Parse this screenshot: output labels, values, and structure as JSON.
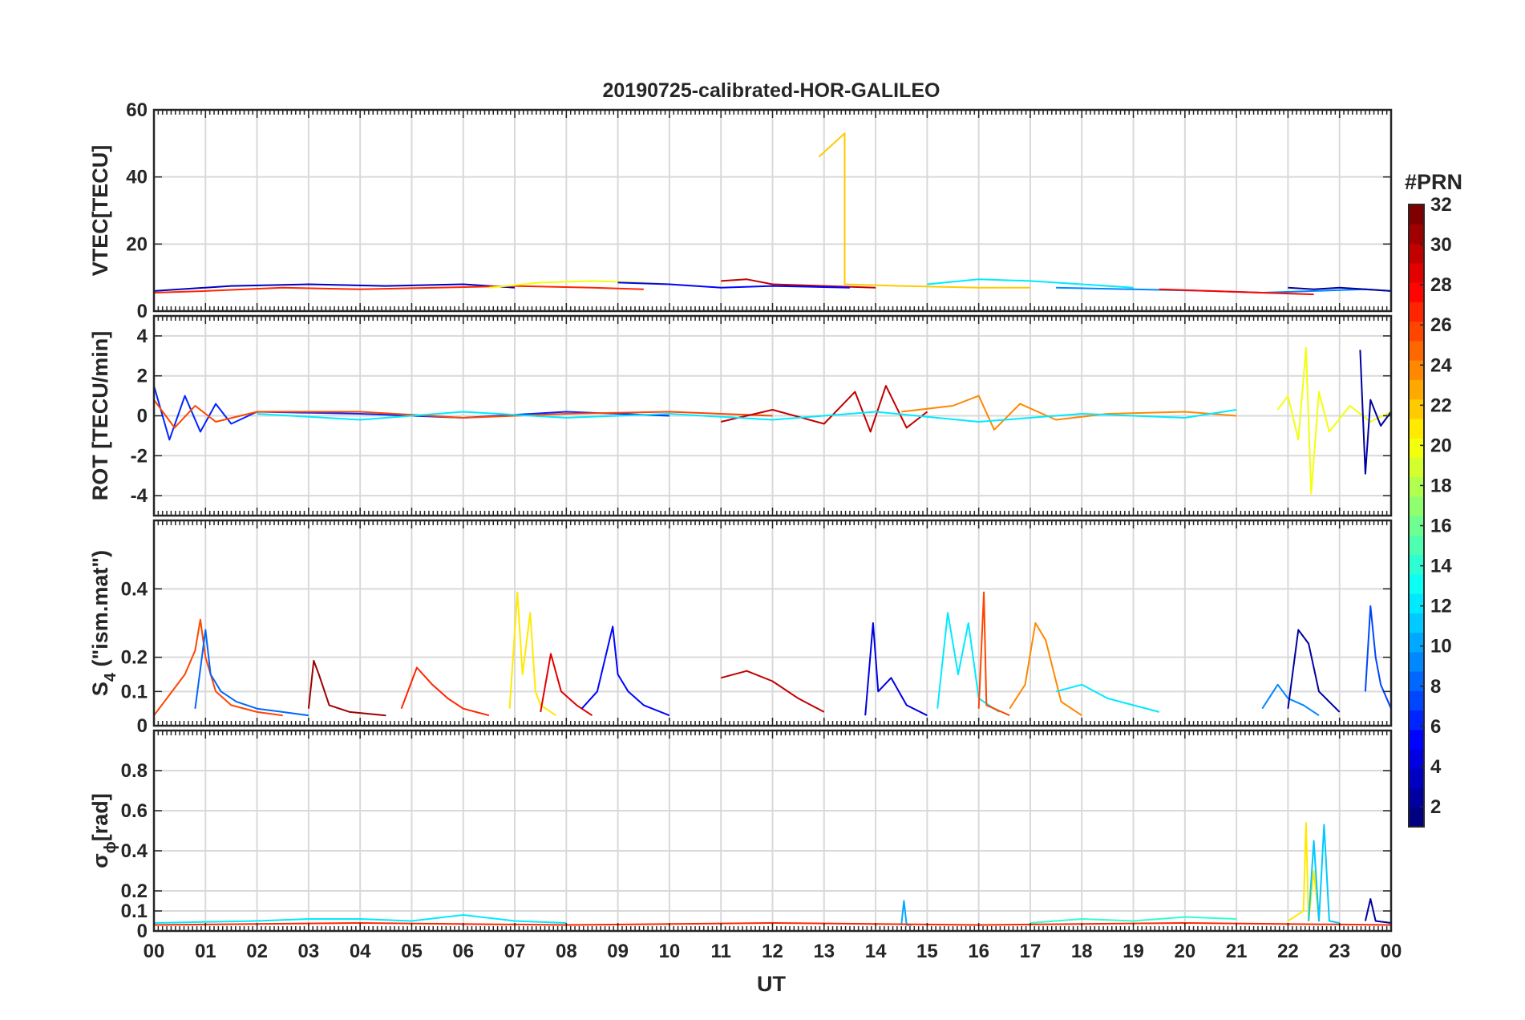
{
  "chart_data": {
    "type": "line",
    "title": "20190725-calibrated-HOR-GALILEO",
    "xlabel": "UT",
    "x_ticks": [
      "00",
      "01",
      "02",
      "03",
      "04",
      "05",
      "06",
      "07",
      "08",
      "09",
      "10",
      "11",
      "12",
      "13",
      "14",
      "15",
      "16",
      "17",
      "18",
      "19",
      "20",
      "21",
      "22",
      "23",
      "00"
    ],
    "xlim": [
      0,
      24
    ],
    "grid": true,
    "colorbar": {
      "title": "#PRN",
      "ticks": [
        2,
        4,
        6,
        8,
        10,
        12,
        14,
        16,
        18,
        20,
        22,
        24,
        26,
        28,
        30,
        32
      ],
      "range": [
        1,
        32
      ],
      "colormap": "jet"
    },
    "panels": [
      {
        "id": "vtec",
        "ylabel": "VTEC[TECU]",
        "ylim": [
          0,
          60
        ],
        "yticks": [
          0,
          20,
          40,
          60
        ],
        "series": [
          {
            "prn": 22,
            "x": [
              12.9,
              13.4,
              13.4,
              13.4,
              14.5,
              16.0,
              17.0
            ],
            "y": [
              46,
              53,
              52,
              8,
              7.5,
              7,
              7
            ]
          },
          {
            "prn": 3,
            "x": [
              0,
              1.5,
              3.0,
              4.5,
              6.0,
              7.0
            ],
            "y": [
              6,
              7.5,
              8,
              7.5,
              8,
              7
            ]
          },
          {
            "prn": 27,
            "x": [
              0,
              1.0,
              2.5,
              4.0,
              5.5,
              7.0,
              8.5,
              9.5
            ],
            "y": [
              5.5,
              6,
              7,
              6.5,
              7,
              7.5,
              7,
              6.5
            ]
          },
          {
            "prn": 20,
            "x": [
              6.5,
              7.5,
              8.5,
              9.5,
              10.5
            ],
            "y": [
              7,
              8.5,
              9,
              8.5,
              7.5
            ]
          },
          {
            "prn": 12,
            "x": [
              15.0,
              16.0,
              17.0,
              18.0,
              19.0
            ],
            "y": [
              8,
              9.5,
              9,
              8,
              7
            ]
          },
          {
            "prn": 30,
            "x": [
              11.0,
              11.5,
              12.0,
              13.0,
              14.0
            ],
            "y": [
              9,
              9.5,
              8,
              7.5,
              7
            ]
          },
          {
            "prn": 5,
            "x": [
              9.0,
              10.0,
              11.0,
              12.0,
              13.5
            ],
            "y": [
              8.5,
              8,
              7,
              7.5,
              7
            ]
          },
          {
            "prn": 9,
            "x": [
              17.5,
              19.0,
              20.5,
              21.5,
              22.5,
              23.5,
              24.0
            ],
            "y": [
              7,
              6.5,
              6,
              5.5,
              6,
              6.5,
              6
            ]
          },
          {
            "prn": 28,
            "x": [
              19.5,
              20.5,
              21.5,
              22.5
            ],
            "y": [
              6.5,
              6,
              5.5,
              5
            ]
          },
          {
            "prn": 2,
            "x": [
              22.0,
              22.5,
              23.0,
              23.5,
              24.0
            ],
            "y": [
              7,
              6.5,
              7,
              6.5,
              6
            ]
          }
        ]
      },
      {
        "id": "rot",
        "ylabel": "ROT [TECU/min]",
        "ylim": [
          -5,
          5
        ],
        "yticks": [
          -4,
          -2,
          0,
          2,
          4
        ],
        "series": [
          {
            "prn": 6,
            "x": [
              0,
              0.3,
              0.6,
              0.9,
              1.2,
              1.5,
              2.0,
              4.0,
              6.0,
              8.0,
              10.0
            ],
            "y": [
              1.5,
              -1.2,
              1.0,
              -0.8,
              0.6,
              -0.4,
              0.2,
              0.1,
              -0.1,
              0.2,
              0
            ]
          },
          {
            "prn": 26,
            "x": [
              0,
              0.4,
              0.8,
              1.2,
              2.0,
              4.0,
              6.0,
              8.0,
              10.0,
              12.0
            ],
            "y": [
              0.8,
              -0.6,
              0.5,
              -0.3,
              0.2,
              0.2,
              -0.1,
              0.1,
              0.2,
              0
            ]
          },
          {
            "prn": 30,
            "x": [
              11.0,
              12.0,
              13.0,
              13.6,
              13.9,
              14.2,
              14.6,
              15.0
            ],
            "y": [
              -0.3,
              0.3,
              -0.4,
              1.2,
              -0.8,
              1.5,
              -0.6,
              0.2
            ]
          },
          {
            "prn": 24,
            "x": [
              14.5,
              15.5,
              16.0,
              16.3,
              16.8,
              17.5,
              18.5,
              20.0,
              21.0
            ],
            "y": [
              0.2,
              0.5,
              1.0,
              -0.7,
              0.6,
              -0.2,
              0.1,
              0.2,
              0
            ]
          },
          {
            "prn": 20,
            "x": [
              21.8,
              22.0,
              22.2,
              22.35,
              22.45,
              22.6,
              22.8,
              23.2,
              23.6,
              24.0
            ],
            "y": [
              0.3,
              1.0,
              -1.2,
              3.4,
              -3.9,
              1.2,
              -0.8,
              0.5,
              -0.3,
              0.2
            ]
          },
          {
            "prn": 2,
            "x": [
              23.4,
              23.5,
              23.6,
              23.8,
              24.0
            ],
            "y": [
              3.3,
              -2.9,
              0.8,
              -0.5,
              0.2
            ]
          },
          {
            "prn": 12,
            "x": [
              2.0,
              4.0,
              6.0,
              8.0,
              10.0,
              12.0,
              14.0,
              16.0,
              18.0,
              20.0,
              21.0
            ],
            "y": [
              0.1,
              -0.2,
              0.2,
              -0.1,
              0.1,
              -0.2,
              0.2,
              -0.3,
              0.1,
              -0.1,
              0.3
            ]
          }
        ]
      },
      {
        "id": "s4",
        "ylabel": "S",
        "ylabel_sub": "4",
        "ylabel_suffix": " (\"ism.mat\")",
        "ylim": [
          0,
          0.6
        ],
        "yticks": [
          0,
          0.1,
          0.2,
          0.4
        ],
        "series": [
          {
            "prn": 26,
            "x": [
              0,
              0.3,
              0.6,
              0.8,
              0.9,
              1.0,
              1.2,
              1.5,
              2.0,
              2.5
            ],
            "y": [
              0.03,
              0.09,
              0.15,
              0.22,
              0.31,
              0.2,
              0.1,
              0.06,
              0.04,
              0.03
            ]
          },
          {
            "prn": 8,
            "x": [
              0.8,
              1.0,
              1.1,
              1.3,
              1.6,
              2.0,
              2.5,
              3.0
            ],
            "y": [
              0.05,
              0.28,
              0.15,
              0.1,
              0.07,
              0.05,
              0.04,
              0.03
            ]
          },
          {
            "prn": 31,
            "x": [
              3.0,
              3.1,
              3.2,
              3.4,
              3.8,
              4.5
            ],
            "y": [
              0.05,
              0.19,
              0.15,
              0.06,
              0.04,
              0.03
            ]
          },
          {
            "prn": 27,
            "x": [
              4.8,
              5.1,
              5.4,
              5.7,
              6.0,
              6.5
            ],
            "y": [
              0.05,
              0.17,
              0.12,
              0.08,
              0.05,
              0.03
            ]
          },
          {
            "prn": 21,
            "x": [
              6.9,
              7.05,
              7.15,
              7.3,
              7.4,
              7.5,
              7.8
            ],
            "y": [
              0.05,
              0.39,
              0.15,
              0.33,
              0.1,
              0.06,
              0.03
            ]
          },
          {
            "prn": 29,
            "x": [
              7.5,
              7.7,
              7.9,
              8.2,
              8.5
            ],
            "y": [
              0.04,
              0.21,
              0.1,
              0.06,
              0.03
            ]
          },
          {
            "prn": 5,
            "x": [
              8.3,
              8.6,
              8.9,
              9.0,
              9.2,
              9.5,
              10.0
            ],
            "y": [
              0.05,
              0.1,
              0.29,
              0.15,
              0.1,
              0.06,
              0.03
            ]
          },
          {
            "prn": 30,
            "x": [
              11.0,
              11.5,
              12.0,
              12.5,
              13.0
            ],
            "y": [
              0.14,
              0.16,
              0.13,
              0.08,
              0.04
            ]
          },
          {
            "prn": 4,
            "x": [
              13.8,
              13.95,
              14.05,
              14.3,
              14.6,
              15.0
            ],
            "y": [
              0.03,
              0.3,
              0.1,
              0.14,
              0.06,
              0.03
            ]
          },
          {
            "prn": 12,
            "x": [
              15.2,
              15.4,
              15.6,
              15.8,
              16.0,
              16.4
            ],
            "y": [
              0.05,
              0.33,
              0.15,
              0.3,
              0.08,
              0.04
            ]
          },
          {
            "prn": 26,
            "x": [
              16.0,
              16.1,
              16.15,
              16.3,
              16.6
            ],
            "y": [
              0.05,
              0.39,
              0.06,
              0.05,
              0.03
            ]
          },
          {
            "prn": 24,
            "x": [
              16.6,
              16.9,
              17.1,
              17.3,
              17.6,
              18.0
            ],
            "y": [
              0.05,
              0.12,
              0.3,
              0.25,
              0.07,
              0.03
            ]
          },
          {
            "prn": 12,
            "x": [
              17.5,
              18.0,
              18.5,
              19.0,
              19.5
            ],
            "y": [
              0.1,
              0.12,
              0.08,
              0.06,
              0.04
            ]
          },
          {
            "prn": 9,
            "x": [
              21.5,
              21.8,
              22.0,
              22.3,
              22.6
            ],
            "y": [
              0.05,
              0.12,
              0.08,
              0.06,
              0.03
            ]
          },
          {
            "prn": 2,
            "x": [
              22.0,
              22.2,
              22.4,
              22.6,
              23.0
            ],
            "y": [
              0.05,
              0.28,
              0.24,
              0.1,
              0.04
            ]
          },
          {
            "prn": 7,
            "x": [
              23.5,
              23.6,
              23.7,
              23.8,
              24.0
            ],
            "y": [
              0.1,
              0.35,
              0.2,
              0.12,
              0.05
            ]
          }
        ]
      },
      {
        "id": "sigma",
        "ylabel": "σ",
        "ylabel_sub": "ϕ",
        "ylabel_suffix": "[rad]",
        "ylim": [
          0,
          1
        ],
        "yticks": [
          0,
          0.1,
          0.2,
          0.4,
          0.6,
          0.8
        ],
        "series": [
          {
            "prn": 12,
            "x": [
              0,
              2.0,
              3.0,
              4.0,
              5.0,
              6.0,
              7.0,
              8.0
            ],
            "y": [
              0.04,
              0.05,
              0.06,
              0.06,
              0.05,
              0.08,
              0.05,
              0.04
            ]
          },
          {
            "prn": 10,
            "x": [
              14.5,
              14.55,
              14.6,
              14.7
            ],
            "y": [
              0.03,
              0.15,
              0.03,
              0.03
            ]
          },
          {
            "prn": 14,
            "x": [
              17.0,
              18.0,
              19.0,
              20.0,
              21.0
            ],
            "y": [
              0.04,
              0.06,
              0.05,
              0.07,
              0.06
            ]
          },
          {
            "prn": 21,
            "x": [
              22.0,
              22.3,
              22.35,
              22.4,
              22.5,
              22.6
            ],
            "y": [
              0.05,
              0.1,
              0.54,
              0.05,
              0.3,
              0.05
            ]
          },
          {
            "prn": 11,
            "x": [
              22.4,
              22.5,
              22.6,
              22.7,
              22.8,
              23.0
            ],
            "y": [
              0.05,
              0.45,
              0.05,
              0.53,
              0.05,
              0.04
            ]
          },
          {
            "prn": 2,
            "x": [
              23.5,
              23.6,
              23.7,
              24.0
            ],
            "y": [
              0.05,
              0.16,
              0.05,
              0.04
            ]
          },
          {
            "prn": 27,
            "x": [
              0,
              4.0,
              8.0,
              12.0,
              16.0,
              20.0,
              24.0
            ],
            "y": [
              0.03,
              0.04,
              0.03,
              0.04,
              0.03,
              0.04,
              0.03
            ]
          }
        ]
      }
    ]
  }
}
